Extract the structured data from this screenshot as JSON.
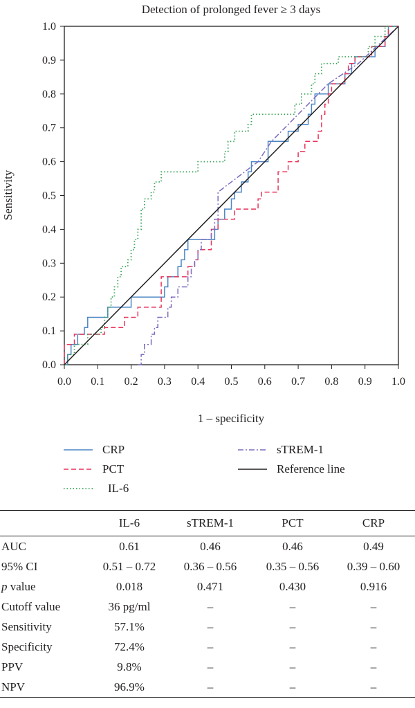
{
  "chart_data": {
    "type": "line",
    "title": "Detection of prolonged fever ≥ 3 days",
    "xlabel": "1 – specificity",
    "ylabel": "Sensitivity",
    "xlim": [
      0,
      1
    ],
    "ylim": [
      0,
      1
    ],
    "xticks": [
      "0.0",
      "0.1",
      "0.2",
      "0.3",
      "0.4",
      "0.5",
      "0.6",
      "0.7",
      "0.8",
      "0.9",
      "1.0"
    ],
    "yticks": [
      "0.0",
      "0.1",
      "0.2",
      "0.3",
      "0.4",
      "0.5",
      "0.6",
      "0.7",
      "0.8",
      "0.9",
      "1.0"
    ],
    "grid": false,
    "legend_position": "below",
    "series": [
      {
        "name": "CRP",
        "color": "#4a86c5",
        "style": "solid",
        "points": [
          [
            0,
            0
          ],
          [
            0.01,
            0
          ],
          [
            0.01,
            0.03
          ],
          [
            0.02,
            0.03
          ],
          [
            0.02,
            0.06
          ],
          [
            0.04,
            0.06
          ],
          [
            0.04,
            0.09
          ],
          [
            0.06,
            0.09
          ],
          [
            0.06,
            0.11
          ],
          [
            0.07,
            0.11
          ],
          [
            0.07,
            0.14
          ],
          [
            0.13,
            0.14
          ],
          [
            0.13,
            0.17
          ],
          [
            0.2,
            0.17
          ],
          [
            0.2,
            0.2
          ],
          [
            0.3,
            0.2
          ],
          [
            0.3,
            0.23
          ],
          [
            0.31,
            0.23
          ],
          [
            0.31,
            0.26
          ],
          [
            0.34,
            0.26
          ],
          [
            0.34,
            0.29
          ],
          [
            0.35,
            0.29
          ],
          [
            0.35,
            0.31
          ],
          [
            0.36,
            0.31
          ],
          [
            0.36,
            0.34
          ],
          [
            0.37,
            0.34
          ],
          [
            0.37,
            0.37
          ],
          [
            0.45,
            0.37
          ],
          [
            0.45,
            0.4
          ],
          [
            0.46,
            0.4
          ],
          [
            0.46,
            0.43
          ],
          [
            0.48,
            0.43
          ],
          [
            0.48,
            0.46
          ],
          [
            0.5,
            0.46
          ],
          [
            0.5,
            0.49
          ],
          [
            0.51,
            0.49
          ],
          [
            0.51,
            0.51
          ],
          [
            0.53,
            0.51
          ],
          [
            0.53,
            0.54
          ],
          [
            0.55,
            0.54
          ],
          [
            0.55,
            0.57
          ],
          [
            0.56,
            0.57
          ],
          [
            0.56,
            0.6
          ],
          [
            0.61,
            0.6
          ],
          [
            0.61,
            0.66
          ],
          [
            0.67,
            0.66
          ],
          [
            0.67,
            0.69
          ],
          [
            0.7,
            0.69
          ],
          [
            0.7,
            0.71
          ],
          [
            0.73,
            0.71
          ],
          [
            0.73,
            0.74
          ],
          [
            0.74,
            0.74
          ],
          [
            0.74,
            0.77
          ],
          [
            0.75,
            0.77
          ],
          [
            0.75,
            0.8
          ],
          [
            0.79,
            0.8
          ],
          [
            0.79,
            0.83
          ],
          [
            0.84,
            0.83
          ],
          [
            0.84,
            0.86
          ],
          [
            0.86,
            0.86
          ],
          [
            0.86,
            0.89
          ],
          [
            0.87,
            0.89
          ],
          [
            0.87,
            0.91
          ],
          [
            0.93,
            0.91
          ],
          [
            0.93,
            0.94
          ],
          [
            0.96,
            0.94
          ],
          [
            0.96,
            0.97
          ],
          [
            0.97,
            0.97
          ],
          [
            0.97,
            1
          ],
          [
            1,
            1
          ]
        ]
      },
      {
        "name": "PCT",
        "color": "#e8345a",
        "style": "dashed",
        "points": [
          [
            0,
            0
          ],
          [
            0,
            0.06
          ],
          [
            0.03,
            0.06
          ],
          [
            0.03,
            0.09
          ],
          [
            0.12,
            0.09
          ],
          [
            0.12,
            0.11
          ],
          [
            0.18,
            0.11
          ],
          [
            0.18,
            0.14
          ],
          [
            0.22,
            0.14
          ],
          [
            0.22,
            0.17
          ],
          [
            0.29,
            0.17
          ],
          [
            0.29,
            0.26
          ],
          [
            0.37,
            0.26
          ],
          [
            0.37,
            0.29
          ],
          [
            0.39,
            0.29
          ],
          [
            0.39,
            0.31
          ],
          [
            0.4,
            0.31
          ],
          [
            0.4,
            0.34
          ],
          [
            0.44,
            0.34
          ],
          [
            0.44,
            0.4
          ],
          [
            0.46,
            0.4
          ],
          [
            0.46,
            0.43
          ],
          [
            0.51,
            0.43
          ],
          [
            0.51,
            0.46
          ],
          [
            0.58,
            0.46
          ],
          [
            0.58,
            0.49
          ],
          [
            0.59,
            0.49
          ],
          [
            0.59,
            0.51
          ],
          [
            0.64,
            0.51
          ],
          [
            0.64,
            0.57
          ],
          [
            0.67,
            0.57
          ],
          [
            0.67,
            0.6
          ],
          [
            0.7,
            0.6
          ],
          [
            0.7,
            0.63
          ],
          [
            0.72,
            0.63
          ],
          [
            0.72,
            0.66
          ],
          [
            0.76,
            0.66
          ],
          [
            0.76,
            0.69
          ],
          [
            0.77,
            0.69
          ],
          [
            0.77,
            0.74
          ],
          [
            0.78,
            0.74
          ],
          [
            0.78,
            0.77
          ],
          [
            0.79,
            0.77
          ],
          [
            0.79,
            0.8
          ],
          [
            0.8,
            0.8
          ],
          [
            0.8,
            0.83
          ],
          [
            0.84,
            0.83
          ],
          [
            0.84,
            0.86
          ],
          [
            0.85,
            0.86
          ],
          [
            0.85,
            0.89
          ],
          [
            0.87,
            0.89
          ],
          [
            0.87,
            0.91
          ],
          [
            0.92,
            0.91
          ],
          [
            0.92,
            0.94
          ],
          [
            0.96,
            0.94
          ],
          [
            0.96,
            0.97
          ],
          [
            0.97,
            0.97
          ],
          [
            0.97,
            1
          ],
          [
            1,
            1
          ]
        ]
      },
      {
        "name": "IL-6",
        "color": "#3aa35a",
        "style": "dotted",
        "points": [
          [
            0,
            0
          ],
          [
            0.01,
            0
          ],
          [
            0.01,
            0.03
          ],
          [
            0.03,
            0.03
          ],
          [
            0.03,
            0.06
          ],
          [
            0.07,
            0.06
          ],
          [
            0.07,
            0.09
          ],
          [
            0.11,
            0.09
          ],
          [
            0.11,
            0.11
          ],
          [
            0.12,
            0.11
          ],
          [
            0.12,
            0.14
          ],
          [
            0.13,
            0.14
          ],
          [
            0.13,
            0.17
          ],
          [
            0.14,
            0.17
          ],
          [
            0.14,
            0.2
          ],
          [
            0.15,
            0.2
          ],
          [
            0.15,
            0.23
          ],
          [
            0.16,
            0.23
          ],
          [
            0.16,
            0.26
          ],
          [
            0.17,
            0.26
          ],
          [
            0.17,
            0.29
          ],
          [
            0.19,
            0.29
          ],
          [
            0.19,
            0.31
          ],
          [
            0.2,
            0.31
          ],
          [
            0.2,
            0.34
          ],
          [
            0.21,
            0.34
          ],
          [
            0.21,
            0.37
          ],
          [
            0.22,
            0.37
          ],
          [
            0.22,
            0.4
          ],
          [
            0.23,
            0.4
          ],
          [
            0.23,
            0.43
          ],
          [
            0.23,
            0.43
          ],
          [
            0.23,
            0.46
          ],
          [
            0.24,
            0.46
          ],
          [
            0.24,
            0.49
          ],
          [
            0.26,
            0.49
          ],
          [
            0.26,
            0.51
          ],
          [
            0.27,
            0.51
          ],
          [
            0.27,
            0.54
          ],
          [
            0.29,
            0.54
          ],
          [
            0.29,
            0.57
          ],
          [
            0.4,
            0.57
          ],
          [
            0.4,
            0.6
          ],
          [
            0.48,
            0.6
          ],
          [
            0.48,
            0.63
          ],
          [
            0.49,
            0.63
          ],
          [
            0.49,
            0.66
          ],
          [
            0.51,
            0.66
          ],
          [
            0.51,
            0.69
          ],
          [
            0.55,
            0.69
          ],
          [
            0.55,
            0.71
          ],
          [
            0.56,
            0.71
          ],
          [
            0.56,
            0.74
          ],
          [
            0.69,
            0.74
          ],
          [
            0.69,
            0.77
          ],
          [
            0.71,
            0.77
          ],
          [
            0.71,
            0.8
          ],
          [
            0.74,
            0.8
          ],
          [
            0.74,
            0.83
          ],
          [
            0.75,
            0.83
          ],
          [
            0.75,
            0.86
          ],
          [
            0.77,
            0.86
          ],
          [
            0.77,
            0.89
          ],
          [
            0.82,
            0.89
          ],
          [
            0.82,
            0.91
          ],
          [
            0.91,
            0.91
          ],
          [
            0.91,
            0.94
          ],
          [
            0.93,
            0.94
          ],
          [
            0.93,
            0.97
          ],
          [
            0.96,
            0.97
          ],
          [
            0.96,
            1
          ],
          [
            1,
            1
          ]
        ]
      },
      {
        "name": "sTREM-1",
        "color": "#7b6bbf",
        "style": "dashdot",
        "points": [
          [
            0.22,
            0
          ],
          [
            0.23,
            0
          ],
          [
            0.23,
            0.03
          ],
          [
            0.24,
            0.03
          ],
          [
            0.24,
            0.06
          ],
          [
            0.26,
            0.06
          ],
          [
            0.26,
            0.09
          ],
          [
            0.27,
            0.09
          ],
          [
            0.27,
            0.11
          ],
          [
            0.28,
            0.11
          ],
          [
            0.28,
            0.14
          ],
          [
            0.31,
            0.14
          ],
          [
            0.31,
            0.17
          ],
          [
            0.32,
            0.17
          ],
          [
            0.32,
            0.2
          ],
          [
            0.34,
            0.2
          ],
          [
            0.34,
            0.23
          ],
          [
            0.37,
            0.23
          ],
          [
            0.37,
            0.26
          ],
          [
            0.38,
            0.26
          ],
          [
            0.38,
            0.29
          ],
          [
            0.39,
            0.29
          ],
          [
            0.39,
            0.31
          ],
          [
            0.4,
            0.31
          ],
          [
            0.4,
            0.34
          ],
          [
            0.41,
            0.34
          ],
          [
            0.41,
            0.37
          ],
          [
            0.44,
            0.37
          ],
          [
            0.44,
            0.4
          ],
          [
            0.45,
            0.4
          ],
          [
            0.45,
            0.43
          ],
          [
            0.46,
            0.43
          ],
          [
            0.46,
            0.51
          ],
          [
            0.58,
            0.6
          ],
          [
            0.62,
            0.66
          ],
          [
            0.79,
            0.83
          ],
          [
            0.88,
            0.89
          ],
          [
            1,
            1
          ]
        ]
      },
      {
        "name": "Reference line",
        "color": "#231f20",
        "style": "solid",
        "points": [
          [
            0,
            0
          ],
          [
            1,
            1
          ]
        ]
      }
    ]
  },
  "legend": [
    {
      "label": "CRP",
      "style": "solid",
      "color": "#4a86c5"
    },
    {
      "label": "PCT",
      "style": "dashed",
      "color": "#e8345a"
    },
    {
      "label": "IL-6",
      "style": "dotted",
      "color": "#3aa35a"
    },
    {
      "label": "sTREM-1",
      "style": "dashdot",
      "color": "#7b6bbf"
    },
    {
      "label": "Reference line",
      "style": "solid",
      "color": "#231f20"
    }
  ],
  "table": {
    "headers": [
      "",
      "IL-6",
      "sTREM-1",
      "PCT",
      "CRP"
    ],
    "rows": [
      {
        "label_pre": "AUC",
        "label_em": "",
        "label_post": "",
        "values": [
          "0.61",
          "0.46",
          "0.46",
          "0.49"
        ]
      },
      {
        "label_pre": "95% CI",
        "label_em": "",
        "label_post": "",
        "values": [
          "0.51 – 0.72",
          "0.36 – 0.56",
          "0.35 – 0.56",
          "0.39 – 0.60"
        ]
      },
      {
        "label_pre": "",
        "label_em": "p",
        "label_post": " value",
        "values": [
          "0.018",
          "0.471",
          "0.430",
          "0.916"
        ]
      },
      {
        "label_pre": "Cutoff value",
        "label_em": "",
        "label_post": "",
        "values": [
          "36 pg/ml",
          "–",
          "–",
          "–"
        ]
      },
      {
        "label_pre": "Sensitivity",
        "label_em": "",
        "label_post": "",
        "values": [
          "57.1%",
          "–",
          "–",
          "–"
        ]
      },
      {
        "label_pre": "Specificity",
        "label_em": "",
        "label_post": "",
        "values": [
          "72.4%",
          "–",
          "–",
          "–"
        ]
      },
      {
        "label_pre": "PPV",
        "label_em": "",
        "label_post": "",
        "values": [
          "9.8%",
          "–",
          "–",
          "–"
        ]
      },
      {
        "label_pre": "NPV",
        "label_em": "",
        "label_post": "",
        "values": [
          "96.9%",
          "–",
          "–",
          "–"
        ]
      }
    ]
  }
}
